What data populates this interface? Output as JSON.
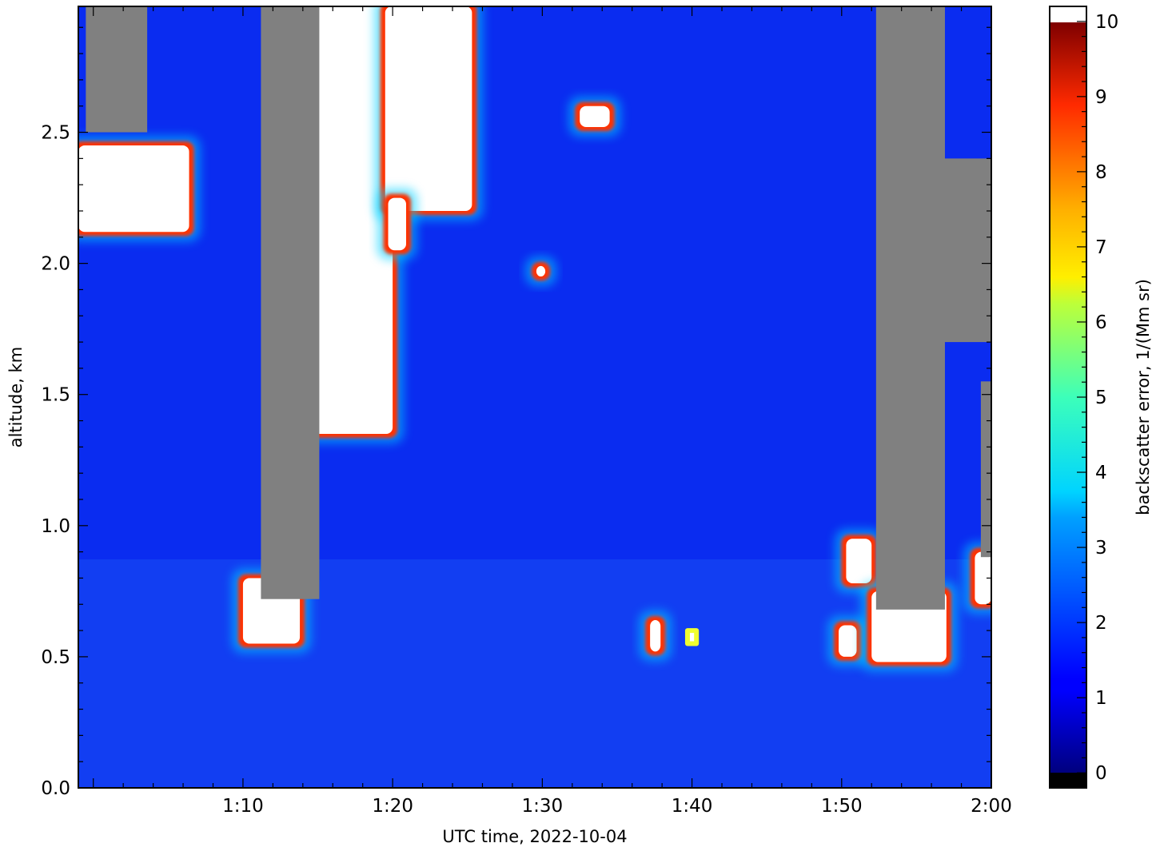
{
  "chart_data": {
    "type": "heatmap",
    "title": "",
    "xlabel": "UTC time,  2022-10-04",
    "ylabel": "altitude, km",
    "x_ticks": [
      {
        "value": "1:10",
        "minutes": 70
      },
      {
        "value": "1:20",
        "minutes": 80
      },
      {
        "value": "1:30",
        "minutes": 90
      },
      {
        "value": "1:40",
        "minutes": 100
      },
      {
        "value": "1:50",
        "minutes": 110
      },
      {
        "value": "2:00",
        "minutes": 120
      }
    ],
    "xlim_minutes": [
      59,
      120
    ],
    "y_ticks": [
      "0.0",
      "0.5",
      "1.0",
      "1.5",
      "2.0",
      "2.5"
    ],
    "ylim": [
      0.0,
      2.98
    ],
    "colorbar": {
      "label": "backscatter error, 1/(Mm sr)",
      "ticks": [
        "0",
        "1",
        "2",
        "3",
        "4",
        "5",
        "6",
        "7",
        "8",
        "9",
        "10"
      ],
      "range": [
        -0.2,
        10.2
      ],
      "colormap": "jet",
      "under_color": "#000000",
      "over_color": "#ffffff",
      "masked_color": "#808080"
    },
    "background_level": 1.0,
    "features": [
      {
        "kind": "masked-column",
        "t_start": 59.5,
        "t_end": 63.6,
        "alt_bottom": 2.5,
        "alt_top": 2.98
      },
      {
        "kind": "saturated-cloud",
        "t_start": 59.0,
        "t_end": 66.4,
        "alt_bottom": 2.12,
        "alt_top": 2.45
      },
      {
        "kind": "masked-column",
        "t_start": 71.2,
        "t_end": 75.1,
        "alt_bottom": 0.72,
        "alt_top": 2.98
      },
      {
        "kind": "saturated-cloud",
        "t_start": 70.0,
        "t_end": 73.8,
        "alt_bottom": 0.55,
        "alt_top": 0.8
      },
      {
        "kind": "saturated-cloud",
        "t_start": 73.5,
        "t_end": 80.0,
        "alt_bottom": 1.35,
        "alt_top": 2.98
      },
      {
        "kind": "saturated-cloud",
        "t_start": 79.5,
        "t_end": 85.3,
        "alt_bottom": 2.2,
        "alt_top": 2.98
      },
      {
        "kind": "saturated-cloud",
        "t_start": 79.7,
        "t_end": 80.9,
        "alt_bottom": 2.05,
        "alt_top": 2.25
      },
      {
        "kind": "saturated-cloud",
        "t_start": 92.5,
        "t_end": 94.5,
        "alt_bottom": 2.52,
        "alt_top": 2.6
      },
      {
        "kind": "saturated-cloud",
        "t_start": 89.6,
        "t_end": 90.2,
        "alt_bottom": 1.95,
        "alt_top": 1.99
      },
      {
        "kind": "saturated-cloud",
        "t_start": 97.2,
        "t_end": 97.9,
        "alt_bottom": 0.52,
        "alt_top": 0.64
      },
      {
        "kind": "enhanced-patch",
        "t_start": 99.7,
        "t_end": 100.3,
        "alt_bottom": 0.55,
        "alt_top": 0.6
      },
      {
        "kind": "saturated-cloud",
        "t_start": 109.8,
        "t_end": 111.0,
        "alt_bottom": 0.5,
        "alt_top": 0.62
      },
      {
        "kind": "saturated-cloud",
        "t_start": 110.3,
        "t_end": 112.0,
        "alt_bottom": 0.78,
        "alt_top": 0.95
      },
      {
        "kind": "masked-column",
        "t_start": 112.3,
        "t_end": 116.9,
        "alt_bottom": 0.68,
        "alt_top": 2.98
      },
      {
        "kind": "saturated-cloud",
        "t_start": 112.0,
        "t_end": 117.0,
        "alt_bottom": 0.48,
        "alt_top": 0.75
      },
      {
        "kind": "masked-column",
        "t_start": 116.5,
        "t_end": 120.0,
        "alt_bottom": 1.7,
        "alt_top": 2.4
      },
      {
        "kind": "masked-column",
        "t_start": 119.3,
        "t_end": 120.0,
        "alt_bottom": 0.88,
        "alt_top": 1.55
      },
      {
        "kind": "saturated-cloud",
        "t_start": 118.9,
        "t_end": 120.0,
        "alt_bottom": 0.7,
        "alt_top": 0.9
      }
    ]
  }
}
